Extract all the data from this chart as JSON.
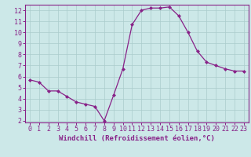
{
  "x": [
    0,
    1,
    2,
    3,
    4,
    5,
    6,
    7,
    8,
    9,
    10,
    11,
    12,
    13,
    14,
    15,
    16,
    17,
    18,
    19,
    20,
    21,
    22,
    23
  ],
  "y": [
    5.7,
    5.5,
    4.7,
    4.7,
    4.2,
    3.7,
    3.5,
    3.3,
    2.0,
    4.3,
    6.7,
    10.7,
    12.0,
    12.2,
    12.2,
    12.3,
    11.5,
    10.0,
    8.3,
    7.3,
    7.0,
    6.7,
    6.5,
    6.5
  ],
  "xlabel": "Windchill (Refroidissement éolien,°C)",
  "ylim": [
    2,
    12
  ],
  "xlim": [
    -0.5,
    23.5
  ],
  "yticks": [
    2,
    3,
    4,
    5,
    6,
    7,
    8,
    9,
    10,
    11,
    12
  ],
  "xticks": [
    0,
    1,
    2,
    3,
    4,
    5,
    6,
    7,
    8,
    9,
    10,
    11,
    12,
    13,
    14,
    15,
    16,
    17,
    18,
    19,
    20,
    21,
    22,
    23
  ],
  "line_color": "#882288",
  "marker": "D",
  "marker_size": 2.0,
  "background_color": "#cce8e8",
  "grid_color": "#aacccc",
  "xlabel_color": "#882288",
  "xlabel_fontsize": 6.5,
  "tick_fontsize": 6,
  "linewidth": 0.9,
  "border_color": "#882288"
}
